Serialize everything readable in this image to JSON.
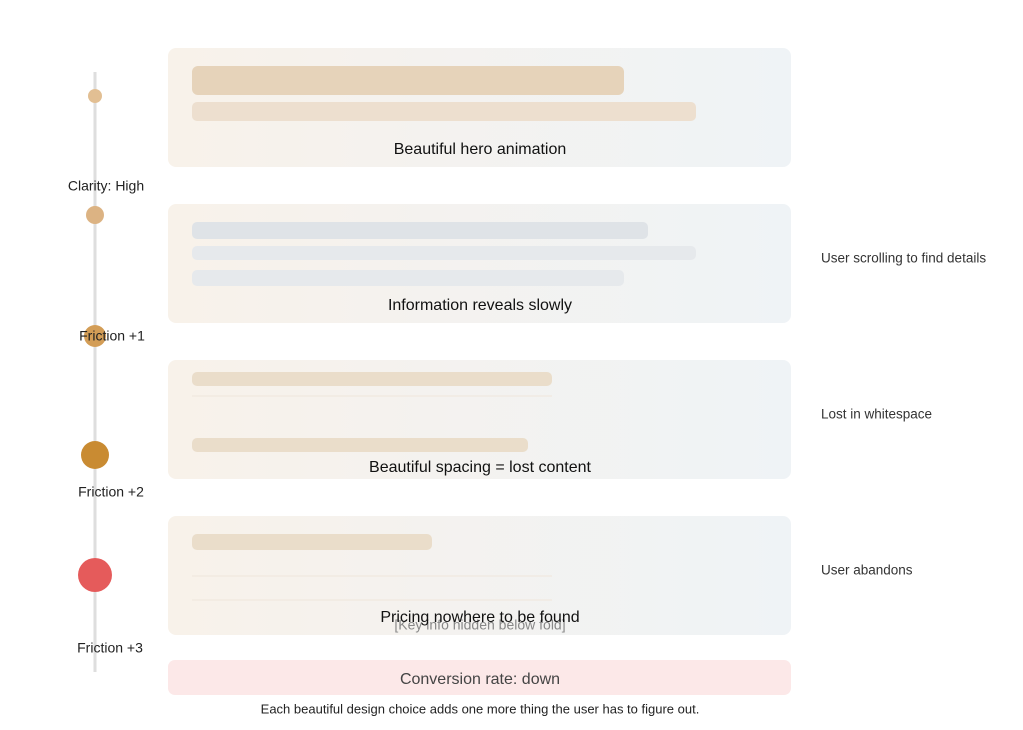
{
  "stages": [
    {
      "label": "Clarity: High",
      "card": "Beautiful hero animation"
    },
    {
      "label": "Friction +1",
      "card": "Information reveals slowly",
      "note": "User scrolling to find details"
    },
    {
      "label": "Friction +2",
      "card": "Beautiful spacing = lost content",
      "note": "Lost in whitespace"
    },
    {
      "label": "Friction +3",
      "card": "Pricing nowhere to be found",
      "note": "User abandons",
      "hidden": "[Key info hidden below fold]"
    }
  ],
  "result": "Conversion rate: down",
  "caption": "Each beautiful design choice adds one more thing the user has to figure out."
}
